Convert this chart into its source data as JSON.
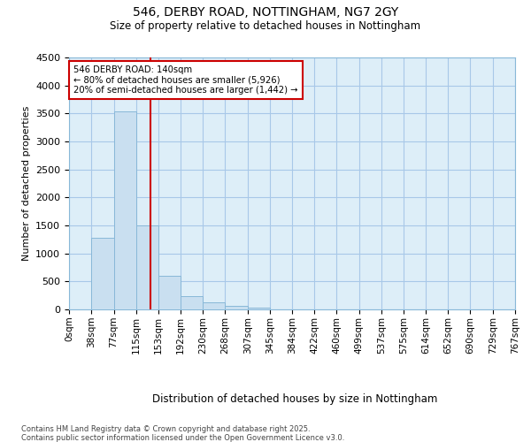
{
  "title1": "546, DERBY ROAD, NOTTINGHAM, NG7 2GY",
  "title2": "Size of property relative to detached houses in Nottingham",
  "xlabel": "Distribution of detached houses by size in Nottingham",
  "ylabel": "Number of detached properties",
  "bins": [
    0,
    38,
    77,
    115,
    153,
    192,
    230,
    268,
    307,
    345,
    384,
    422,
    460,
    499,
    537,
    575,
    614,
    652,
    690,
    729,
    767
  ],
  "counts": [
    0,
    1280,
    3530,
    1500,
    600,
    240,
    130,
    70,
    30,
    0,
    0,
    0,
    0,
    0,
    0,
    0,
    0,
    0,
    0,
    0
  ],
  "bar_color": "#c9dff0",
  "bar_edge_color": "#88b8d8",
  "grid_color": "#a8c8e8",
  "bg_color": "#ddeef8",
  "ylim": [
    0,
    4500
  ],
  "yticks": [
    0,
    500,
    1000,
    1500,
    2000,
    2500,
    3000,
    3500,
    4000,
    4500
  ],
  "property_size": 140,
  "red_line_color": "#cc0000",
  "annotation_line1": "546 DERBY ROAD: 140sqm",
  "annotation_line2": "← 80% of detached houses are smaller (5,926)",
  "annotation_line3": "20% of semi-detached houses are larger (1,442) →",
  "footnote1": "Contains HM Land Registry data © Crown copyright and database right 2025.",
  "footnote2": "Contains public sector information licensed under the Open Government Licence v3.0."
}
